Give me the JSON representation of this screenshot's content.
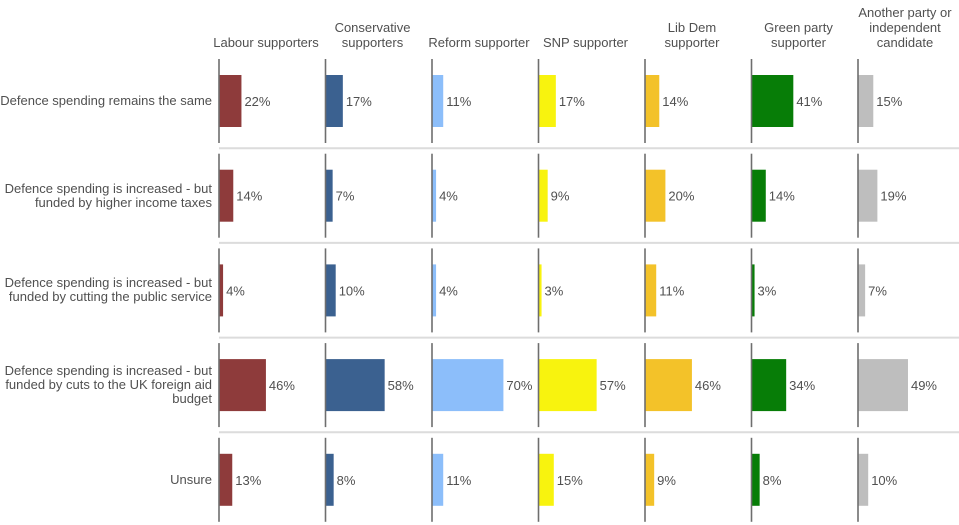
{
  "chart_data": {
    "type": "bar",
    "orientation": "horizontal-small-multiples",
    "title": "",
    "xlabel": "",
    "ylabel": "",
    "xlim": [
      0,
      100
    ],
    "grid": false,
    "legend": "none",
    "value_suffix": "%",
    "categories": [
      "Defence spending remains the same",
      "Defence spending is increased - but funded by higher income taxes",
      "Defence spending is increased - but funded by cutting the public service",
      "Defence spending is increased - but funded by cuts to the UK foreign aid budget",
      "Unsure"
    ],
    "series": [
      {
        "name": "Labour supporters",
        "color": "#8E3B3B",
        "values": [
          22,
          14,
          4,
          46,
          13
        ]
      },
      {
        "name": "Conservative supporters",
        "color": "#3B6190",
        "values": [
          17,
          7,
          10,
          58,
          8
        ]
      },
      {
        "name": "Reform supporter",
        "color": "#8CBEFA",
        "values": [
          11,
          4,
          4,
          70,
          11
        ]
      },
      {
        "name": "SNP supporter",
        "color": "#F8F30E",
        "values": [
          17,
          9,
          3,
          57,
          15
        ]
      },
      {
        "name": "Lib Dem supporter",
        "color": "#F3C229",
        "values": [
          14,
          20,
          11,
          46,
          9
        ]
      },
      {
        "name": "Green party supporter",
        "color": "#077D07",
        "values": [
          41,
          14,
          3,
          34,
          8
        ]
      },
      {
        "name": "Another party or independent candidate",
        "color": "#BEBEBE",
        "values": [
          15,
          19,
          7,
          49,
          10
        ]
      }
    ]
  }
}
